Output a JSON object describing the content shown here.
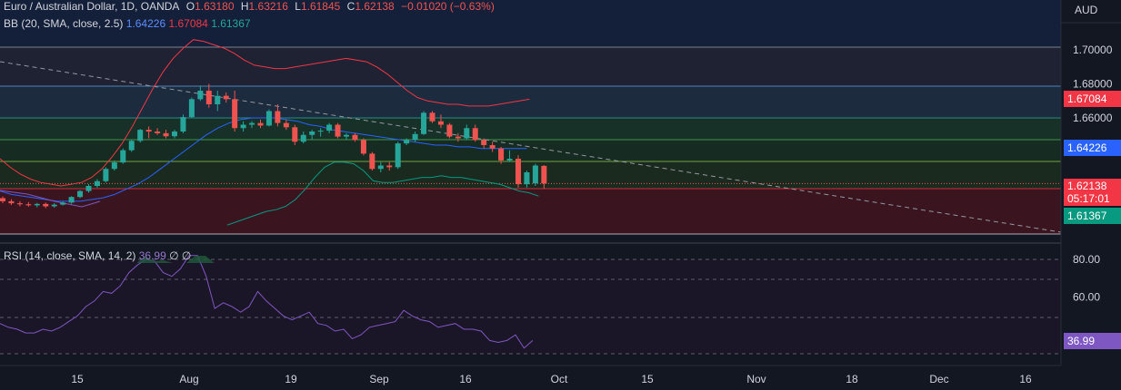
{
  "header": {
    "symbol": "Euro / Australian Dollar, 1D, OANDA",
    "open_label": "O",
    "open": "1.63180",
    "high_label": "H",
    "high": "1.63216",
    "low_label": "L",
    "low": "1.61845",
    "close_label": "C",
    "close": "1.62138",
    "change": "−0.01020 (−0.63%)"
  },
  "bb_legend": {
    "label": "BB (20, SMA, close, 2.5)",
    "basis": "1.64226",
    "upper": "1.67084",
    "lower": "1.61367"
  },
  "rsi_legend": {
    "label": "RSI (14, close, SMA, 14, 2)",
    "value": "36.99",
    "ma": "∅",
    "extra": "∅"
  },
  "currency": "AUD",
  "price_tags": {
    "upper": "1.67084",
    "basis": "1.64226",
    "last": "1.62138",
    "countdown": "05:17:01",
    "lower": "1.61367",
    "rsi": "36.99"
  },
  "colors": {
    "up": "#26a69a",
    "down": "#ef5350",
    "upper_band": "#f23645",
    "basis": "#2962ff",
    "lower_band": "#089981",
    "rsi": "#7e57c2",
    "bg": "#131722"
  },
  "chart_data": {
    "type": "candlestick",
    "price_axis": {
      "range": [
        1.6,
        1.72
      ],
      "ticks": [
        "1.70000",
        "1.68000",
        "1.66000"
      ]
    },
    "rsi_axis": {
      "range": [
        25,
        100
      ],
      "ticks": [
        "80.00",
        "60.00"
      ]
    },
    "x_ticks": [
      "15",
      "Aug",
      "19",
      "Sep",
      "16",
      "Oct",
      "15",
      "Nov",
      "18",
      "Dec",
      "16"
    ],
    "candles": [
      [
        1.6128,
        1.6138,
        1.6098,
        1.611
      ],
      [
        1.611,
        1.6122,
        1.6088,
        1.6098
      ],
      [
        1.6098,
        1.611,
        1.608,
        1.6092
      ],
      [
        1.6092,
        1.6105,
        1.6078,
        1.6086
      ],
      [
        1.6086,
        1.61,
        1.6074,
        1.6094
      ],
      [
        1.6094,
        1.6102,
        1.607,
        1.608
      ],
      [
        1.608,
        1.6098,
        1.6072,
        1.609
      ],
      [
        1.609,
        1.611,
        1.6085,
        1.6102
      ],
      [
        1.6102,
        1.614,
        1.6095,
        1.6135
      ],
      [
        1.6135,
        1.6175,
        1.6128,
        1.617
      ],
      [
        1.617,
        1.621,
        1.616,
        1.62
      ],
      [
        1.62,
        1.624,
        1.619,
        1.6228
      ],
      [
        1.6228,
        1.631,
        1.622,
        1.63
      ],
      [
        1.63,
        1.635,
        1.629,
        1.6338
      ],
      [
        1.6338,
        1.642,
        1.633,
        1.641
      ],
      [
        1.641,
        1.647,
        1.64,
        1.6465
      ],
      [
        1.6465,
        1.6535,
        1.6455,
        1.653
      ],
      [
        1.653,
        1.655,
        1.648,
        1.652
      ],
      [
        1.652,
        1.654,
        1.65,
        1.651
      ],
      [
        1.651,
        1.653,
        1.648,
        1.6492
      ],
      [
        1.6492,
        1.653,
        1.648,
        1.652
      ],
      [
        1.652,
        1.662,
        1.651,
        1.6605
      ],
      [
        1.6605,
        1.672,
        1.66,
        1.671
      ],
      [
        1.671,
        1.679,
        1.67,
        1.676
      ],
      [
        1.676,
        1.68,
        1.666,
        1.668
      ],
      [
        1.668,
        1.676,
        1.664,
        1.673
      ],
      [
        1.673,
        1.675,
        1.669,
        1.671
      ],
      [
        1.671,
        1.676,
        1.652,
        1.654
      ],
      [
        1.654,
        1.658,
        1.652,
        1.656
      ],
      [
        1.656,
        1.658,
        1.654,
        1.657
      ],
      [
        1.657,
        1.659,
        1.654,
        1.6555
      ],
      [
        1.6555,
        1.665,
        1.655,
        1.664
      ],
      [
        1.664,
        1.668,
        1.655,
        1.657
      ],
      [
        1.657,
        1.659,
        1.653,
        1.6545
      ],
      [
        1.6545,
        1.656,
        1.644,
        1.646
      ],
      [
        1.646,
        1.652,
        1.645,
        1.65
      ],
      [
        1.65,
        1.653,
        1.647,
        1.652
      ],
      [
        1.652,
        1.654,
        1.649,
        1.6525
      ],
      [
        1.6525,
        1.657,
        1.651,
        1.656
      ],
      [
        1.656,
        1.657,
        1.648,
        1.649
      ],
      [
        1.649,
        1.651,
        1.647,
        1.65
      ],
      [
        1.65,
        1.651,
        1.646,
        1.647
      ],
      [
        1.647,
        1.648,
        1.638,
        1.639
      ],
      [
        1.639,
        1.64,
        1.629,
        1.63
      ],
      [
        1.63,
        1.634,
        1.628,
        1.632
      ],
      [
        1.632,
        1.634,
        1.629,
        1.631
      ],
      [
        1.631,
        1.646,
        1.63,
        1.645
      ],
      [
        1.645,
        1.648,
        1.644,
        1.647
      ],
      [
        1.647,
        1.652,
        1.646,
        1.6505
      ],
      [
        1.6505,
        1.664,
        1.65,
        1.663
      ],
      [
        1.663,
        1.664,
        1.657,
        1.658
      ],
      [
        1.658,
        1.662,
        1.654,
        1.656
      ],
      [
        1.656,
        1.657,
        1.648,
        1.649
      ],
      [
        1.649,
        1.651,
        1.646,
        1.648
      ],
      [
        1.648,
        1.656,
        1.647,
        1.654
      ],
      [
        1.654,
        1.656,
        1.646,
        1.647
      ],
      [
        1.647,
        1.648,
        1.642,
        1.644
      ],
      [
        1.644,
        1.646,
        1.64,
        1.642
      ],
      [
        1.642,
        1.643,
        1.633,
        1.635
      ],
      [
        1.635,
        1.641,
        1.634,
        1.636
      ],
      [
        1.636,
        1.638,
        1.619,
        1.621
      ],
      [
        1.621,
        1.629,
        1.619,
        1.628
      ],
      [
        1.6215,
        1.633,
        1.62,
        1.632
      ],
      [
        1.6318,
        1.6322,
        1.6185,
        1.6214
      ]
    ],
    "upper_band": [
      1.636,
      1.631,
      1.627,
      1.624,
      1.622,
      1.621,
      1.62,
      1.621,
      1.622,
      1.625,
      1.63,
      1.637,
      1.645,
      1.655,
      1.666,
      1.677,
      1.687,
      1.695,
      1.701,
      1.706,
      1.705,
      1.703,
      1.701,
      1.698,
      1.694,
      1.691,
      1.69,
      1.689,
      1.689,
      1.69,
      1.691,
      1.692,
      1.693,
      1.694,
      1.695,
      1.694,
      1.693,
      1.69,
      1.686,
      1.681,
      1.676,
      1.672,
      1.67,
      1.669,
      1.668,
      1.668,
      1.667,
      1.667,
      1.667,
      1.668,
      1.669,
      1.67,
      1.671
    ],
    "basis": [
      1.617,
      1.615,
      1.614,
      1.613,
      1.612,
      1.611,
      1.611,
      1.611,
      1.612,
      1.613,
      1.615,
      1.618,
      1.621,
      1.625,
      1.63,
      1.635,
      1.64,
      1.645,
      1.65,
      1.654,
      1.657,
      1.659,
      1.66,
      1.66,
      1.66,
      1.659,
      1.658,
      1.656,
      1.655,
      1.653,
      1.652,
      1.651,
      1.65,
      1.649,
      1.648,
      1.647,
      1.646,
      1.645,
      1.644,
      1.644,
      1.643,
      1.643,
      1.642,
      1.642,
      1.642,
      1.642,
      1.642
    ],
    "lower_band": [
      1.597,
      1.599,
      1.601,
      1.603,
      1.605,
      1.606,
      1.608,
      1.612,
      1.618,
      1.625,
      1.631,
      1.634,
      1.634,
      1.633,
      1.629,
      1.623,
      1.622,
      1.622,
      1.623,
      1.624,
      1.625,
      1.625,
      1.626,
      1.625,
      1.625,
      1.624,
      1.623,
      1.622,
      1.621,
      1.619,
      1.617,
      1.616,
      1.614
    ],
    "rsi": [
      46,
      44,
      43,
      41,
      41,
      43,
      42,
      44,
      47,
      50,
      55,
      58,
      63,
      62,
      66,
      73,
      77,
      80,
      79,
      73,
      71,
      75,
      82,
      82,
      71,
      54,
      57,
      55,
      52,
      55,
      63,
      58,
      54,
      50,
      48,
      50,
      52,
      46,
      45,
      42,
      43,
      38,
      40,
      44,
      45,
      46,
      47,
      53,
      50,
      48,
      47,
      44,
      45,
      46,
      43,
      43,
      42,
      37,
      36,
      37,
      40,
      33,
      37
    ],
    "rsi_ma": [
      44,
      43,
      43,
      42,
      42,
      42,
      43,
      44,
      46,
      49,
      53,
      57,
      61,
      64,
      67,
      71,
      74,
      76,
      77,
      77,
      76,
      75,
      72,
      69,
      66,
      63,
      60,
      58,
      57,
      56,
      55,
      54,
      53,
      52,
      51,
      50,
      49,
      48,
      47,
      46,
      45,
      44,
      44,
      43,
      43,
      43,
      42,
      42,
      41,
      41,
      40,
      40,
      39,
      39,
      38
    ]
  }
}
